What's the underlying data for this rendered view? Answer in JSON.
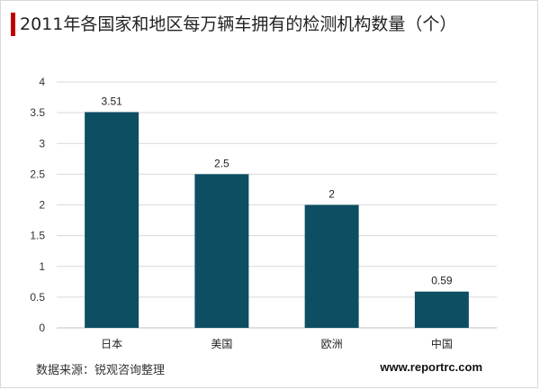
{
  "title": "2011年各国家和地区每万辆车拥有的检测机构数量（个）",
  "footer": {
    "source": "数据来源：锐观咨询整理",
    "website": "www.reportrc.com"
  },
  "colors": {
    "bar": "#0d4e63",
    "accent": "#c00000",
    "grid": "#d9d9d9"
  },
  "chart_data": {
    "type": "bar",
    "title": "2011年各国家和地区每万辆车拥有的检测机构数量（个）",
    "categories": [
      "日本",
      "美国",
      "欧洲",
      "中国"
    ],
    "values": [
      3.51,
      2.5,
      2,
      0.59
    ],
    "value_labels": [
      "3.51",
      "2.5",
      "2",
      "0.59"
    ],
    "xlabel": "",
    "ylabel": "",
    "ylim": [
      0,
      4
    ],
    "yticks": [
      "0",
      "0.5",
      "1",
      "1.5",
      "2",
      "2.5",
      "3",
      "3.5",
      "4"
    ],
    "grid": true,
    "legend": "none"
  }
}
